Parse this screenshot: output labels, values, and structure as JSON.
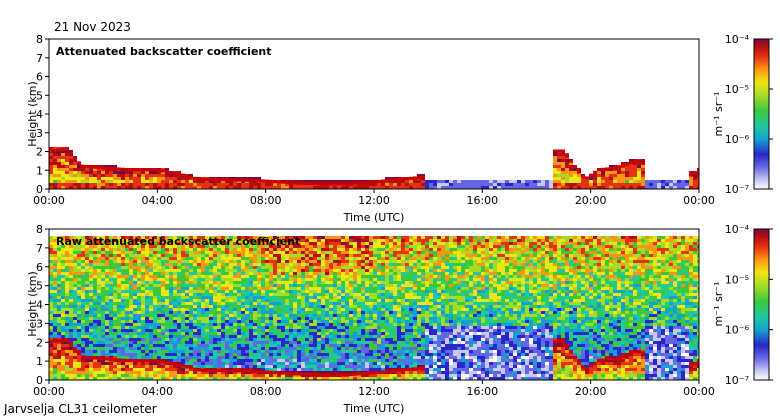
{
  "header": {
    "date": "21 Nov 2023"
  },
  "footer": {
    "site_label": "Jarvselja CL31 ceilometer"
  },
  "colors": {
    "colormap": [
      "#ffffff",
      "#c8c8f0",
      "#6464e6",
      "#2828c8",
      "#14a0d2",
      "#1ec8a0",
      "#3cc83c",
      "#a0dc28",
      "#f0e614",
      "#fa9614",
      "#e63214",
      "#b40f0f",
      "#780a46"
    ],
    "cloud_base": "#cc0000",
    "noise": "#3c50dc"
  },
  "chart_data": [
    {
      "type": "heatmap",
      "title": "Attenuated backscatter coefficient",
      "xlabel": "Time (UTC)",
      "ylabel": "Height (km)",
      "x_ticks": [
        "00:00",
        "04:00",
        "08:00",
        "12:00",
        "16:00",
        "20:00",
        "00:00"
      ],
      "x_range_hours": [
        0,
        24
      ],
      "y_ticks": [
        "0",
        "1",
        "2",
        "3",
        "4",
        "5",
        "6",
        "7",
        "8"
      ],
      "ylim": [
        0,
        8
      ],
      "colorbar": {
        "label": "m⁻¹ sr⁻¹",
        "ticks": [
          "10⁻⁴",
          "10⁻⁵",
          "10⁻⁶",
          "10⁻⁷"
        ],
        "log_range": [
          -7,
          -4
        ]
      },
      "cloud_base_km": [
        [
          0.0,
          2.0
        ],
        [
          0.7,
          2.1
        ],
        [
          1.2,
          1.2
        ],
        [
          2.0,
          1.1
        ],
        [
          3.0,
          1.0
        ],
        [
          4.0,
          1.0
        ],
        [
          5.0,
          0.7
        ],
        [
          5.5,
          0.5
        ],
        [
          7.0,
          0.45
        ],
        [
          8.0,
          0.4
        ],
        [
          9.0,
          0.3
        ],
        [
          10.0,
          0.25
        ],
        [
          11.0,
          0.25
        ],
        [
          12.0,
          0.35
        ],
        [
          13.0,
          0.5
        ],
        [
          13.8,
          0.6
        ]
      ],
      "late_cloud_km": [
        [
          18.6,
          2.0
        ],
        [
          19.0,
          2.0
        ],
        [
          19.4,
          1.2
        ],
        [
          19.8,
          0.5
        ],
        [
          20.3,
          1.0
        ],
        [
          21.0,
          1.1
        ],
        [
          21.7,
          1.5
        ],
        [
          23.6,
          0.7
        ],
        [
          24.0,
          0.9
        ]
      ],
      "ground_fill": true
    },
    {
      "type": "heatmap",
      "title": "Raw attenuated backscatter coefficient",
      "xlabel": "Time (UTC)",
      "ylabel": "Height (km)",
      "x_ticks": [
        "00:00",
        "04:00",
        "08:00",
        "12:00",
        "16:00",
        "20:00",
        "00:00"
      ],
      "x_range_hours": [
        0,
        24
      ],
      "y_ticks": [
        "0",
        "1",
        "2",
        "3",
        "4",
        "5",
        "6",
        "7",
        "8"
      ],
      "ylim": [
        0,
        8
      ],
      "colorbar": {
        "label": "m⁻¹ sr⁻¹",
        "ticks": [
          "10⁻⁴",
          "10⁻⁵",
          "10⁻⁶",
          "10⁻⁷"
        ],
        "log_range": [
          -7,
          -4
        ]
      },
      "noise_top_km": 7.6,
      "cloud_base_km": [
        [
          0.0,
          2.0
        ],
        [
          0.7,
          2.1
        ],
        [
          1.2,
          1.2
        ],
        [
          2.0,
          1.1
        ],
        [
          3.0,
          1.0
        ],
        [
          4.0,
          1.0
        ],
        [
          5.0,
          0.7
        ],
        [
          5.5,
          0.5
        ],
        [
          7.0,
          0.45
        ],
        [
          8.0,
          0.4
        ],
        [
          9.0,
          0.3
        ],
        [
          10.0,
          0.25
        ],
        [
          11.0,
          0.25
        ],
        [
          12.0,
          0.35
        ],
        [
          13.0,
          0.5
        ],
        [
          13.8,
          0.6
        ]
      ],
      "late_cloud_km": [
        [
          18.6,
          2.0
        ],
        [
          19.0,
          2.0
        ],
        [
          19.4,
          1.2
        ],
        [
          19.8,
          0.5
        ],
        [
          20.3,
          1.0
        ],
        [
          21.0,
          1.1
        ],
        [
          21.7,
          1.5
        ],
        [
          23.6,
          0.7
        ],
        [
          24.0,
          0.9
        ]
      ]
    }
  ]
}
